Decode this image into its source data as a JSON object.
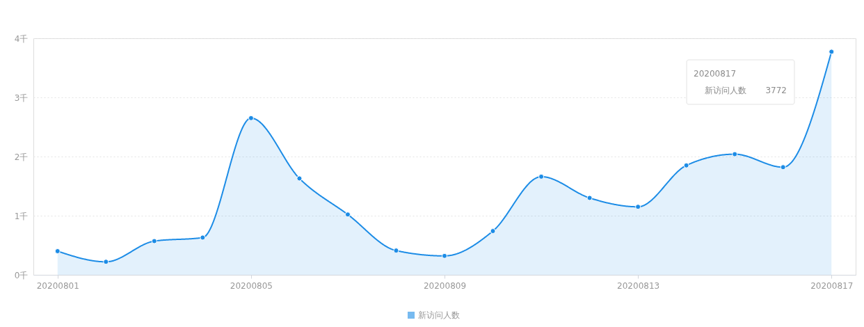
{
  "chart_data": {
    "type": "area",
    "categories": [
      "20200801",
      null,
      null,
      null,
      "20200805",
      null,
      null,
      null,
      "20200809",
      null,
      null,
      null,
      "20200813",
      null,
      null,
      null,
      "20200817"
    ],
    "series": [
      {
        "name": "新访问人数",
        "color": "#1c8ce6",
        "values": [
          0.4,
          0.22,
          0.57,
          0.63,
          2.65,
          1.63,
          1.02,
          0.41,
          0.32,
          0.74,
          1.66,
          1.3,
          1.15,
          1.85,
          2.04,
          1.82,
          3.772
        ]
      }
    ],
    "ylim": [
      0,
      4
    ],
    "yticks": [
      {
        "value": 0,
        "label": "0千"
      },
      {
        "value": 1,
        "label": "1千"
      },
      {
        "value": 2,
        "label": "2千"
      },
      {
        "value": 3,
        "label": "3千"
      },
      {
        "value": 4,
        "label": "4千"
      }
    ],
    "grid": "y",
    "legend": "bottom",
    "marker": "circle",
    "line_style": "solid",
    "annotations": [
      "20200817",
      "新访问人数",
      "3772"
    ]
  }
}
